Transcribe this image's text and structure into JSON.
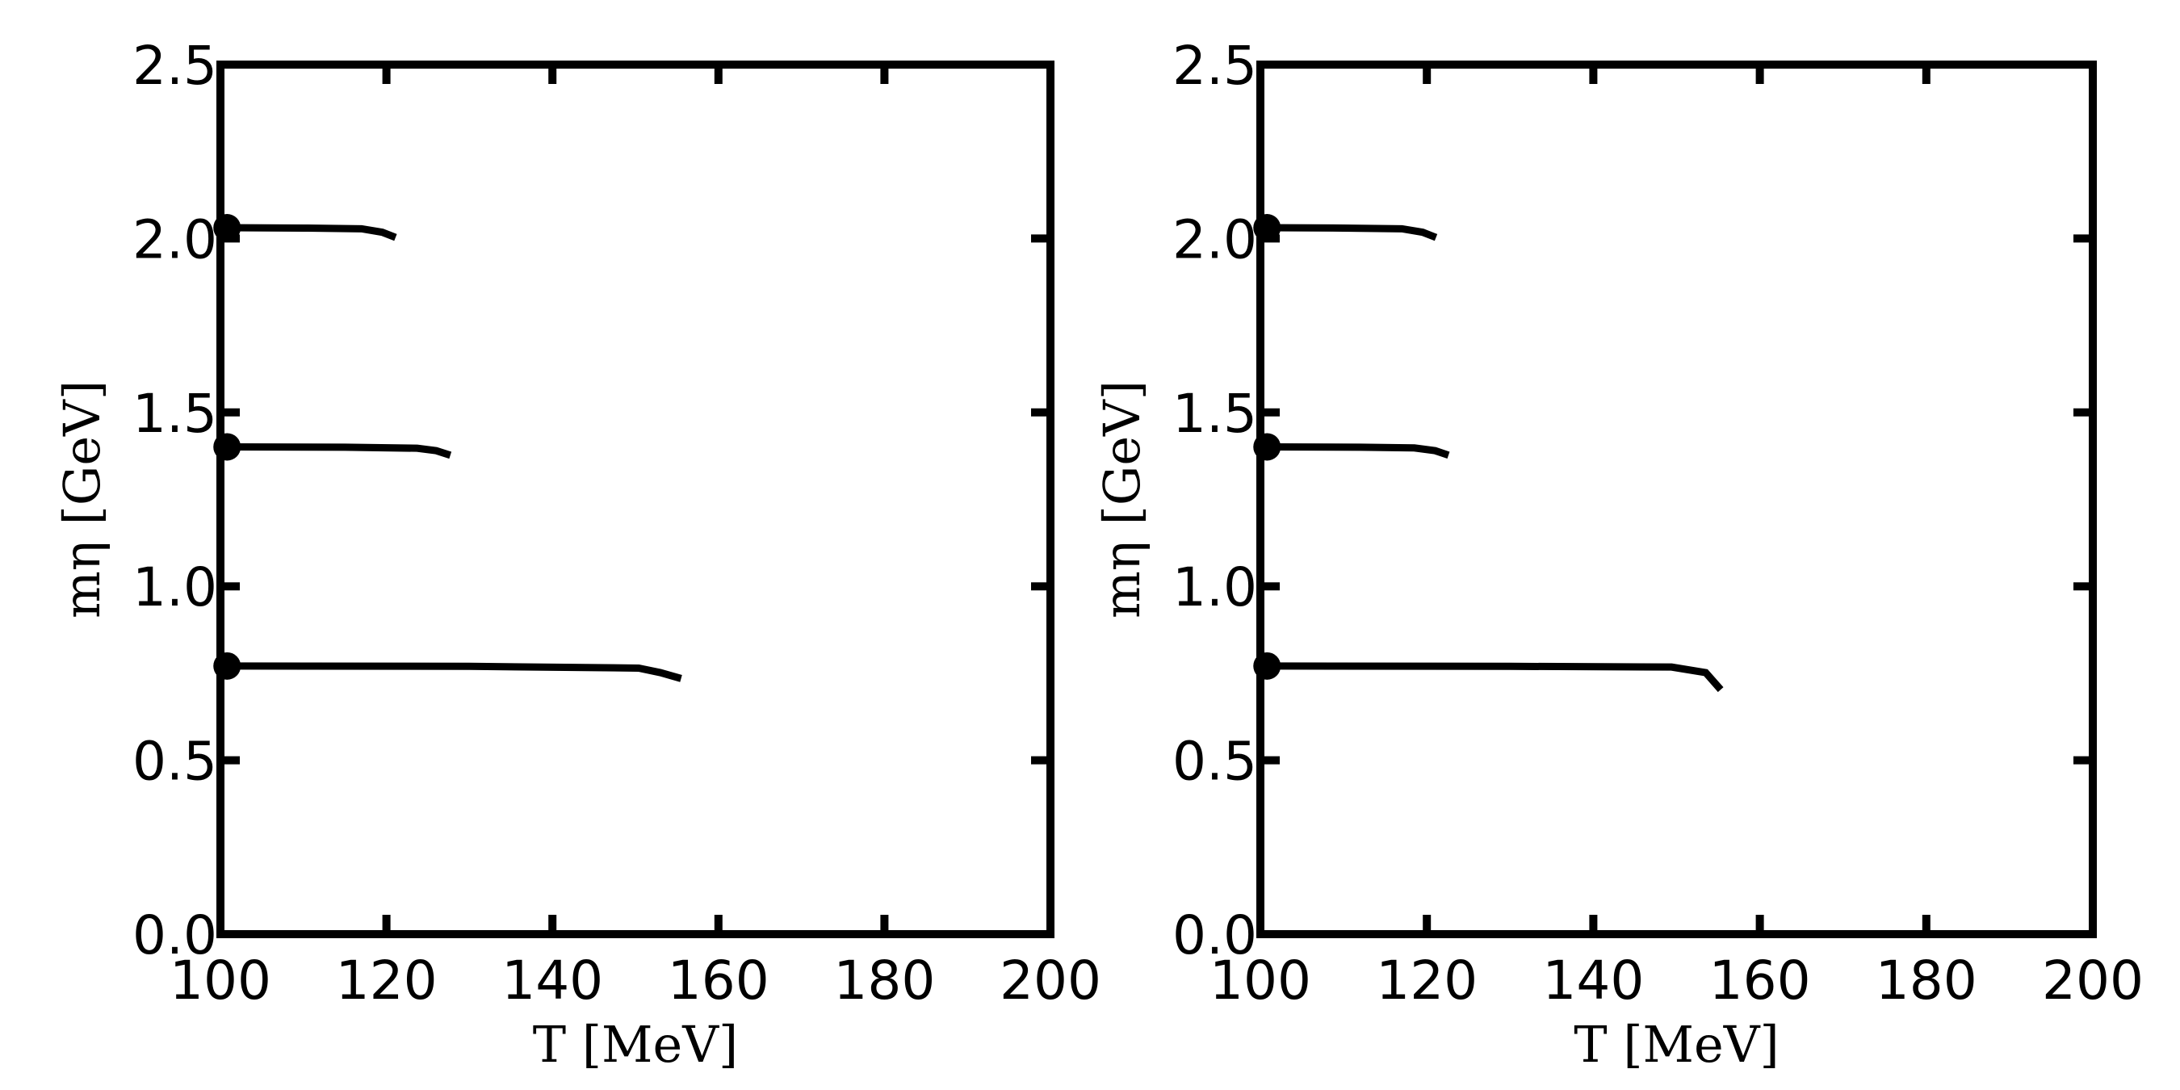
{
  "chart_data": [
    {
      "type": "line",
      "xlabel": "T [MeV]",
      "ylabel": "mη [GeV]",
      "xlim": [
        100,
        200
      ],
      "ylim": [
        0,
        2.5
      ],
      "xticks": [
        100,
        120,
        140,
        160,
        180,
        200
      ],
      "yticks": [
        {
          "value": 0,
          "label": "0.0"
        },
        0.5,
        {
          "value": 1,
          "label": "1.0"
        },
        1.5,
        {
          "value": 2,
          "label": "2.0"
        },
        2.5
      ],
      "series": [
        {
          "color": "#000000",
          "marker": "start",
          "x": [
            100.8,
            130,
            150.4,
            153,
            155.5
          ],
          "values": [
            0.771,
            0.77,
            0.765,
            0.752,
            0.735
          ]
        },
        {
          "color": "#000000",
          "marker": "start",
          "x": [
            100.8,
            115,
            123.7,
            126,
            127.7
          ],
          "values": [
            1.401,
            1.4,
            1.397,
            1.39,
            1.377
          ]
        },
        {
          "color": "#000000",
          "marker": "start",
          "x": [
            100.8,
            110,
            117,
            119.5,
            121.1
          ],
          "values": [
            2.031,
            2.03,
            2.028,
            2.018,
            2.003
          ]
        }
      ]
    },
    {
      "type": "line",
      "xlabel": "T [MeV]",
      "ylabel": "mη [GeV]",
      "xlim": [
        100,
        200
      ],
      "ylim": [
        0,
        2.5
      ],
      "xticks": [
        100,
        120,
        140,
        160,
        180,
        200
      ],
      "yticks": [
        {
          "value": 0,
          "label": "0.0"
        },
        0.5,
        {
          "value": 1,
          "label": "1.0"
        },
        1.5,
        {
          "value": 2,
          "label": "2.0"
        },
        2.5
      ],
      "series": [
        {
          "color": "#000000",
          "marker": "start",
          "x": [
            100.8,
            130,
            149.4,
            153.5,
            155.3
          ],
          "values": [
            0.771,
            0.77,
            0.768,
            0.752,
            0.703
          ]
        },
        {
          "color": "#000000",
          "marker": "start",
          "x": [
            100.8,
            112,
            118.5,
            121,
            122.6
          ],
          "values": [
            1.401,
            1.4,
            1.398,
            1.39,
            1.377
          ]
        },
        {
          "color": "#000000",
          "marker": "start",
          "x": [
            100.8,
            110,
            117,
            119.5,
            121.1
          ],
          "values": [
            2.031,
            2.03,
            2.028,
            2.018,
            2.003
          ]
        }
      ]
    }
  ]
}
